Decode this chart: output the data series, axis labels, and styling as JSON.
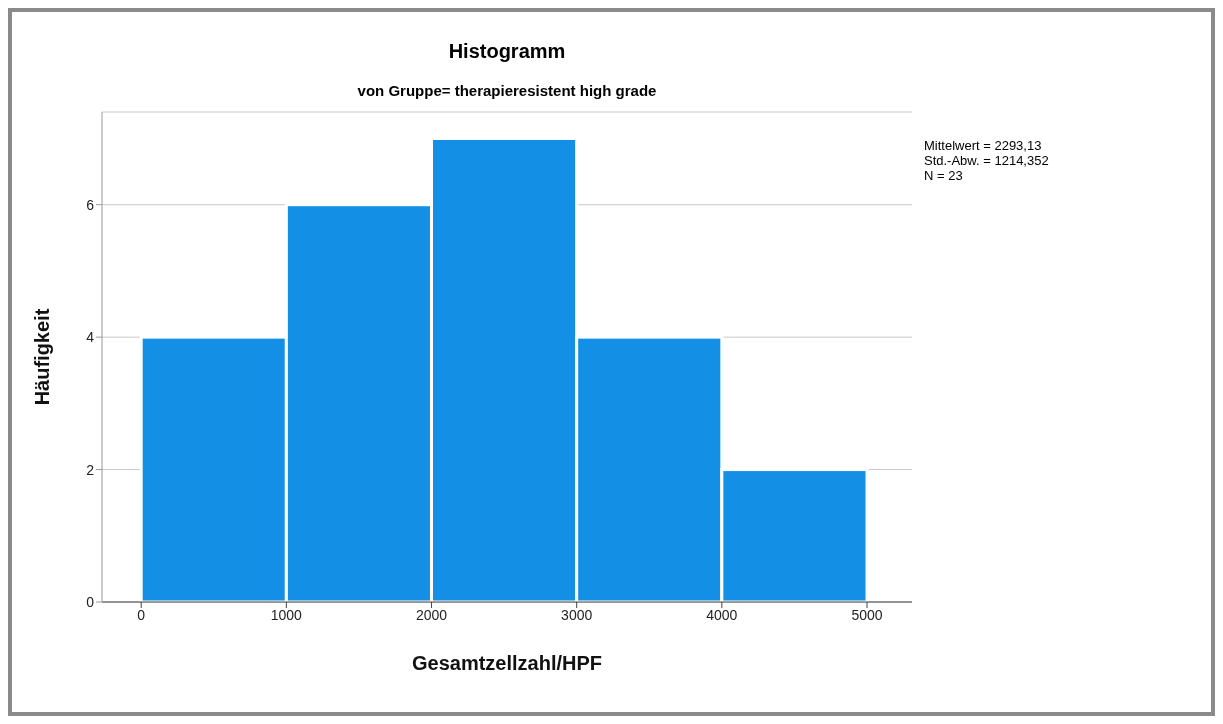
{
  "chart_data": {
    "type": "histogram",
    "title": "Histogramm",
    "subtitle": "von Gruppe= therapieresistent high grade",
    "xlabel": "Gesamtzellzahl/HPF",
    "ylabel": "Häufigkeit",
    "bins": [
      0,
      1000,
      2000,
      3000,
      4000,
      5000
    ],
    "values": [
      4,
      6,
      7,
      4,
      2
    ],
    "color": "#1390e6",
    "xlim": [
      -270,
      5310
    ],
    "xticks": [
      0,
      1000,
      2000,
      3000,
      4000,
      5000
    ],
    "ylim": [
      0,
      7.4
    ],
    "yticks": [
      0,
      2,
      4,
      6
    ],
    "grid": "y",
    "annotations": [
      "Mittelwert = 2293,13",
      "Std.-Abw. = 1214,352",
      "N = 23"
    ]
  }
}
